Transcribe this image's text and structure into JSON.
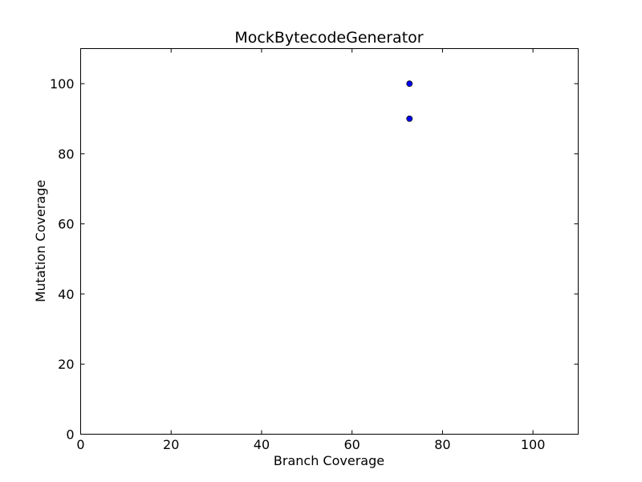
{
  "chart_data": {
    "type": "scatter",
    "title": "MockBytecodeGenerator",
    "xlabel": "Branch Coverage",
    "ylabel": "Mutation Coverage",
    "xlim": [
      0,
      110
    ],
    "ylim": [
      0,
      110
    ],
    "xticks": [
      0,
      20,
      40,
      60,
      80,
      100
    ],
    "yticks": [
      0,
      20,
      40,
      60,
      80,
      100
    ],
    "grid": false,
    "legend": "none",
    "marker_color": "#0000ff",
    "series": [
      {
        "points": [
          {
            "x": 72.7,
            "y": 100
          },
          {
            "x": 72.7,
            "y": 90
          }
        ]
      }
    ]
  }
}
